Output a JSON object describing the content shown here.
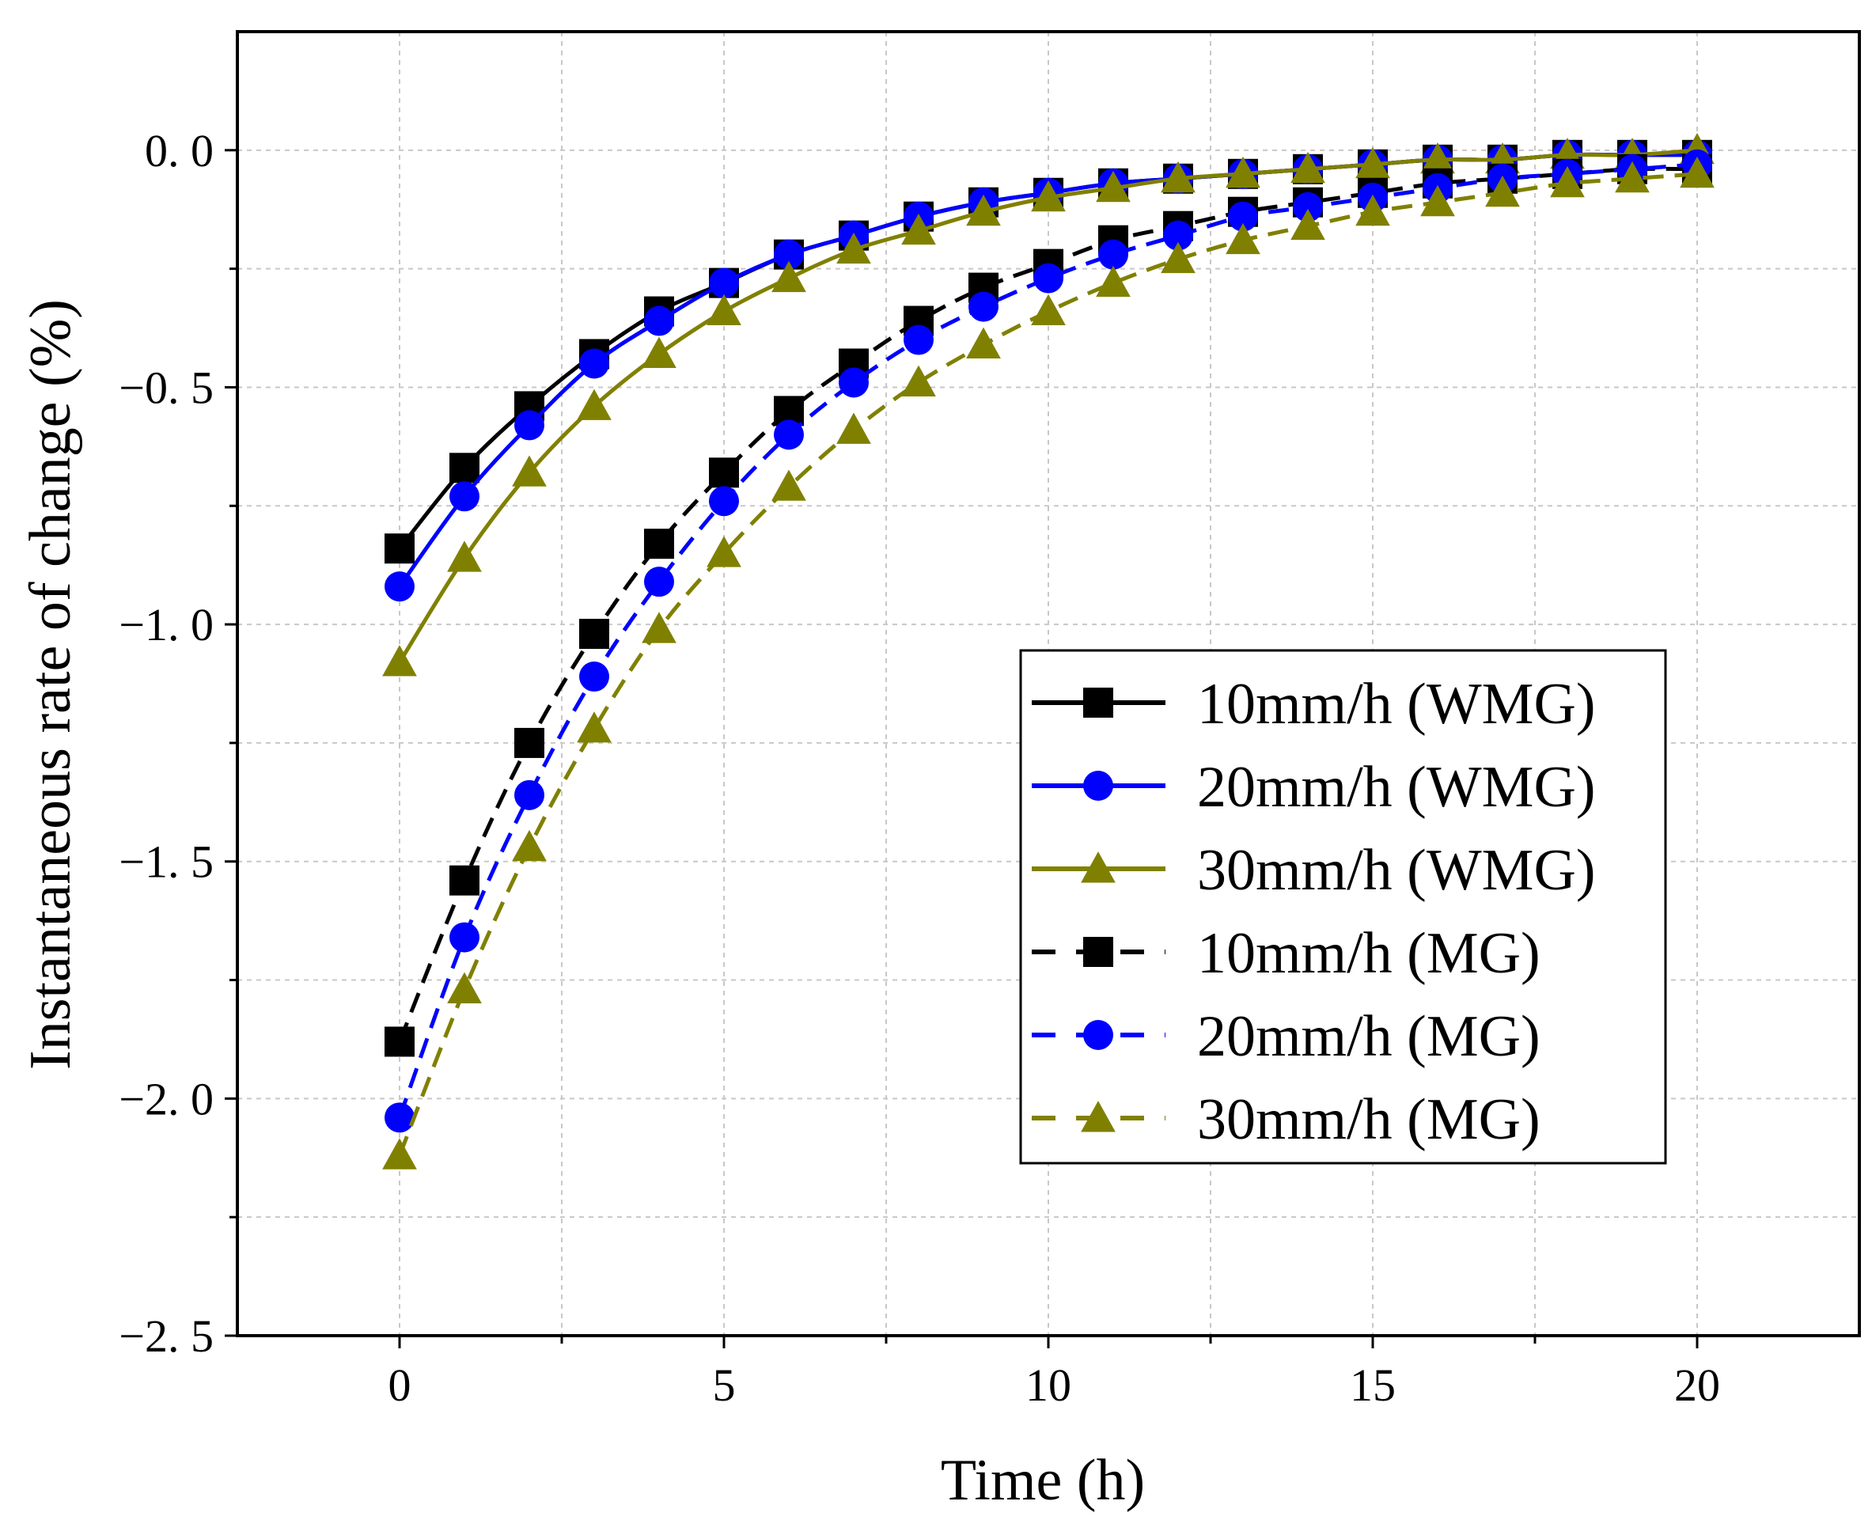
{
  "chart_data": {
    "type": "line",
    "title": "",
    "xlabel": "Time (h)",
    "ylabel": "Instantaneous rate of change (%)",
    "xlim": [
      -2.5,
      22.5
    ],
    "ylim": [
      -2.5,
      0.25
    ],
    "xticks": [
      0,
      5,
      10,
      15,
      20
    ],
    "xtick_labels": [
      "0",
      "5",
      "10",
      "15",
      "20"
    ],
    "yticks": [
      0.0,
      -0.5,
      -1.0,
      -1.5,
      -2.0,
      -2.5
    ],
    "ytick_labels": [
      "0. 0",
      "−0. 5",
      "−1. 0",
      "−1. 5",
      "−2. 0",
      "−2. 5"
    ],
    "grid": true,
    "legend_position": "center-right",
    "x": [
      0,
      1,
      2,
      3,
      4,
      5,
      6,
      7,
      8,
      9,
      10,
      11,
      12,
      13,
      14,
      15,
      16,
      17,
      18,
      19,
      20
    ],
    "series": [
      {
        "name": "10mm/h (WMG)",
        "color": "#000000",
        "marker": "square",
        "dashed": false,
        "values": [
          -0.84,
          -0.67,
          -0.54,
          -0.43,
          -0.34,
          -0.28,
          -0.22,
          -0.18,
          -0.14,
          -0.11,
          -0.09,
          -0.07,
          -0.06,
          -0.05,
          -0.04,
          -0.03,
          -0.02,
          -0.02,
          -0.01,
          -0.01,
          -0.01
        ]
      },
      {
        "name": "20mm/h (WMG)",
        "color": "#0000ff",
        "marker": "circle",
        "dashed": false,
        "values": [
          -0.92,
          -0.73,
          -0.58,
          -0.45,
          -0.36,
          -0.28,
          -0.22,
          -0.18,
          -0.14,
          -0.11,
          -0.09,
          -0.07,
          -0.06,
          -0.05,
          -0.04,
          -0.03,
          -0.02,
          -0.02,
          -0.01,
          -0.01,
          -0.01
        ]
      },
      {
        "name": "30mm/h (WMG)",
        "color": "#808000",
        "marker": "triangle",
        "dashed": false,
        "values": [
          -1.08,
          -0.86,
          -0.68,
          -0.54,
          -0.43,
          -0.34,
          -0.27,
          -0.21,
          -0.17,
          -0.13,
          -0.1,
          -0.08,
          -0.06,
          -0.05,
          -0.04,
          -0.03,
          -0.02,
          -0.02,
          -0.01,
          -0.01,
          0.0
        ]
      },
      {
        "name": "10mm/h (MG)",
        "color": "#000000",
        "marker": "square",
        "dashed": true,
        "values": [
          -1.88,
          -1.54,
          -1.25,
          -1.02,
          -0.83,
          -0.68,
          -0.55,
          -0.45,
          -0.36,
          -0.29,
          -0.24,
          -0.19,
          -0.16,
          -0.13,
          -0.11,
          -0.09,
          -0.07,
          -0.06,
          -0.05,
          -0.04,
          -0.04
        ]
      },
      {
        "name": "20mm/h (MG)",
        "color": "#0000ff",
        "marker": "circle",
        "dashed": true,
        "values": [
          -2.04,
          -1.66,
          -1.36,
          -1.11,
          -0.91,
          -0.74,
          -0.6,
          -0.49,
          -0.4,
          -0.33,
          -0.27,
          -0.22,
          -0.18,
          -0.14,
          -0.12,
          -0.1,
          -0.08,
          -0.06,
          -0.05,
          -0.04,
          -0.03
        ]
      },
      {
        "name": "30mm/h (MG)",
        "color": "#808000",
        "marker": "triangle",
        "dashed": true,
        "values": [
          -2.12,
          -1.77,
          -1.47,
          -1.22,
          -1.01,
          -0.85,
          -0.71,
          -0.59,
          -0.49,
          -0.41,
          -0.34,
          -0.28,
          -0.23,
          -0.19,
          -0.16,
          -0.13,
          -0.11,
          -0.09,
          -0.07,
          -0.06,
          -0.05
        ]
      }
    ]
  }
}
